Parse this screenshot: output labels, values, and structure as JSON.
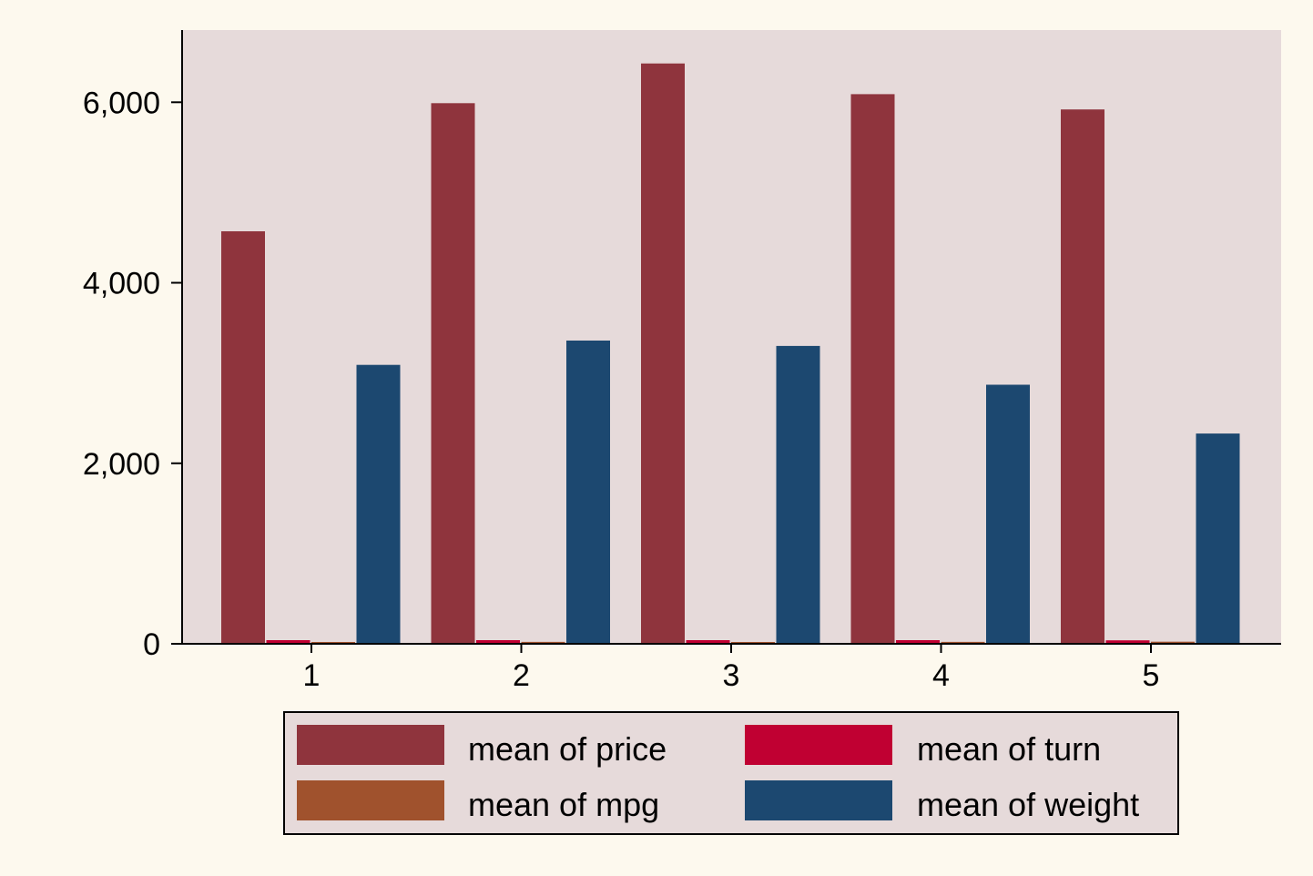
{
  "chart_data": {
    "type": "bar",
    "categories": [
      "1",
      "2",
      "3",
      "4",
      "5"
    ],
    "series": [
      {
        "name": "mean of price",
        "color": "#8f343d",
        "values": [
          4570,
          5990,
          6430,
          6090,
          5920
        ]
      },
      {
        "name": "mean of turn",
        "color": "#c00032",
        "values": [
          40,
          40,
          40,
          40,
          38
        ]
      },
      {
        "name": "mean of mpg",
        "color": "#a0522d",
        "values": [
          20,
          21,
          20,
          21,
          23
        ]
      },
      {
        "name": "mean of weight",
        "color": "#1c4870",
        "values": [
          3090,
          3360,
          3300,
          2870,
          2330
        ]
      }
    ],
    "yticks": [
      "0",
      "2,000",
      "4,000",
      "6,000"
    ],
    "ytick_values": [
      0,
      2000,
      4000,
      6000
    ],
    "ylim": [
      0,
      6800
    ],
    "grid": false,
    "legend_position": "bottom",
    "plot_background": "#e6dada",
    "page_background": "#fdf9ee"
  }
}
